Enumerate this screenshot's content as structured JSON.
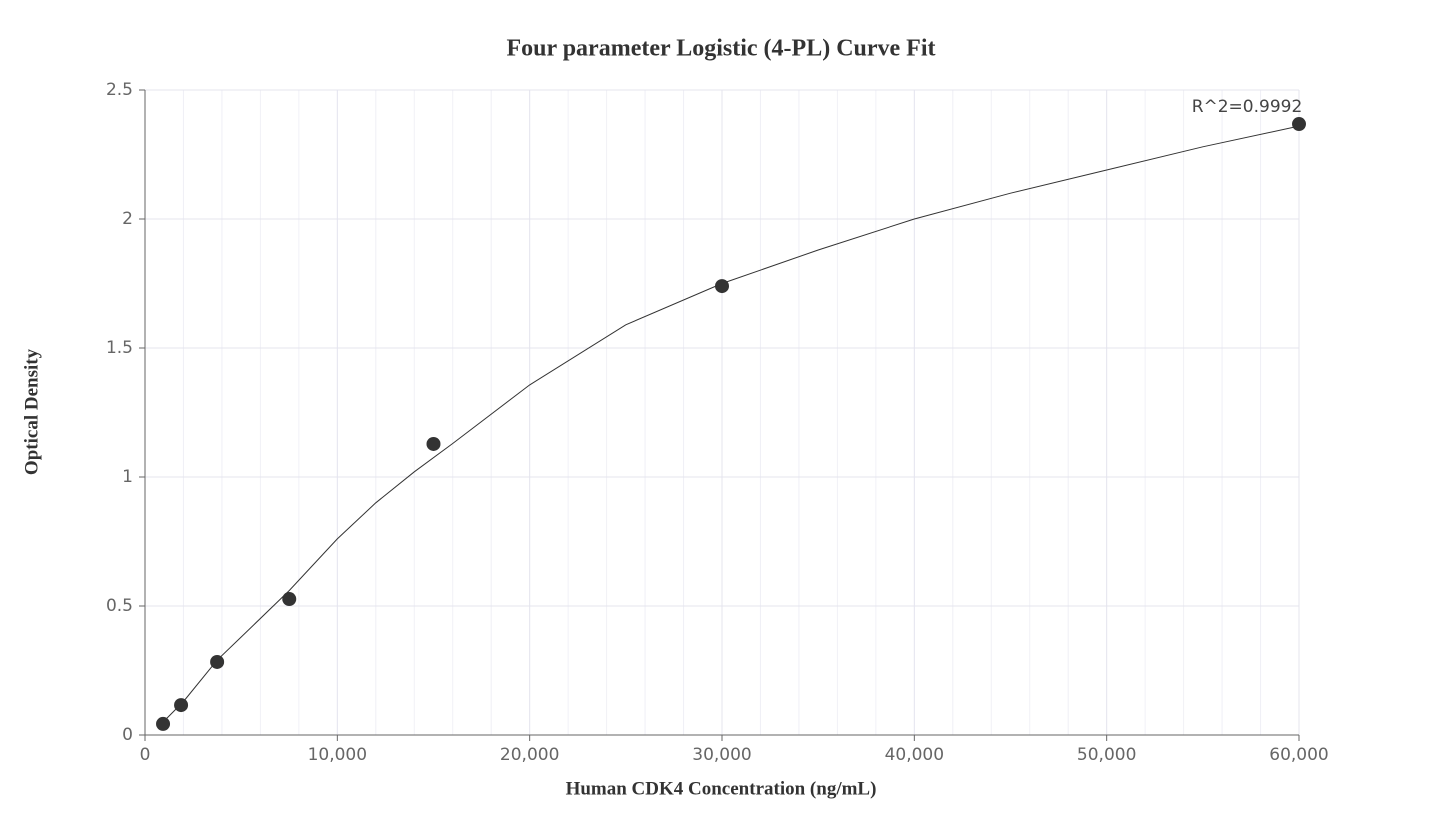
{
  "chart_data": {
    "type": "scatter",
    "title": "Four parameter Logistic (4-PL) Curve Fit",
    "xlabel": "Human CDK4 Concentration (ng/mL)",
    "ylabel": "Optical Density",
    "annotation": "R^2=0.9992",
    "x": [
      937.5,
      1875,
      3750,
      7500,
      15000,
      30000,
      60000
    ],
    "values": [
      0.043,
      0.116,
      0.283,
      0.527,
      1.128,
      1.74,
      2.368
    ],
    "color": "#333333",
    "curve": {
      "x": [
        937.5,
        2000,
        3750,
        5000,
        7500,
        10000,
        12000,
        14000,
        16000,
        20000,
        25000,
        30000,
        35000,
        40000,
        45000,
        50000,
        55000,
        60000
      ],
      "y": [
        0.05,
        0.13,
        0.29,
        0.38,
        0.56,
        0.76,
        0.9,
        1.02,
        1.13,
        1.357,
        1.59,
        1.75,
        1.88,
        2.0,
        2.1,
        2.19,
        2.28,
        2.36
      ],
      "color": "#333333"
    },
    "xlim": [
      0,
      60000
    ],
    "ylim": [
      0,
      2.5
    ],
    "xticks": [
      0,
      {
        "value": 10000,
        "label": "10,000"
      },
      {
        "value": 20000,
        "label": "20,000"
      },
      {
        "value": 30000,
        "label": "30,000"
      },
      {
        "value": 40000,
        "label": "40,000"
      },
      {
        "value": 50000,
        "label": "50,000"
      },
      {
        "value": 60000,
        "label": "60,000"
      }
    ],
    "xminorticks": [
      2000,
      4000,
      6000,
      8000,
      12000,
      14000,
      16000,
      18000,
      22000,
      24000,
      26000,
      28000,
      32000,
      34000,
      36000,
      38000,
      42000,
      44000,
      46000,
      48000,
      52000,
      54000,
      56000,
      58000
    ],
    "yticks": [
      0,
      0.5,
      1,
      1.5,
      2,
      2.5
    ],
    "grid": true
  }
}
